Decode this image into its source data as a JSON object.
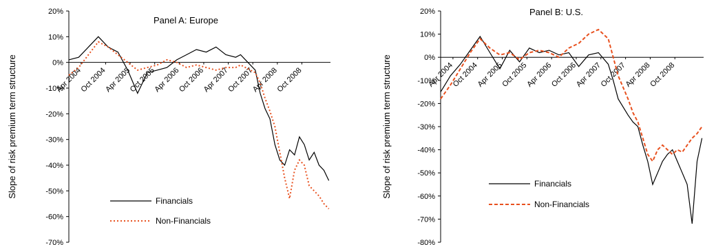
{
  "chart_data": [
    {
      "type": "line",
      "title": "Panel A: Europe",
      "ylabel": "Slope of risk premium term structure",
      "ylim": [
        -70,
        20
      ],
      "yticks": [
        20,
        10,
        0,
        -10,
        -20,
        -30,
        -40,
        -50,
        -60,
        -70
      ],
      "ytick_labels": [
        "20%",
        "10%",
        "0%",
        "-10%",
        "-20%",
        "-30%",
        "-40%",
        "-50%",
        "-60%",
        "-70%"
      ],
      "xlim": [
        2004.0,
        2009.333
      ],
      "xticks": [
        {
          "label": "Apr 2004",
          "x": 2004.25
        },
        {
          "label": "Oct 2004",
          "x": 2004.75
        },
        {
          "label": "Apr 2005",
          "x": 2005.25
        },
        {
          "label": "Oct 2005",
          "x": 2005.75
        },
        {
          "label": "Apr 2006",
          "x": 2006.25
        },
        {
          "label": "Oct 2006",
          "x": 2006.75
        },
        {
          "label": "Apr 2007",
          "x": 2007.25
        },
        {
          "label": "Oct 2007",
          "x": 2007.75
        },
        {
          "label": "Apr 2008",
          "x": 2008.25
        },
        {
          "label": "Oct 2008",
          "x": 2008.75
        }
      ],
      "legend": {
        "placement": "lower-center"
      },
      "series": [
        {
          "name": "Financials",
          "color": "#000000",
          "x": [
            2004.0,
            2004.2,
            2004.4,
            2004.6,
            2004.8,
            2005.0,
            2005.2,
            2005.4,
            2005.6,
            2005.8,
            2006.0,
            2006.2,
            2006.4,
            2006.6,
            2006.8,
            2007.0,
            2007.2,
            2007.4,
            2007.5,
            2007.6,
            2007.8,
            2007.9,
            2008.0,
            2008.1,
            2008.2,
            2008.3,
            2008.4,
            2008.5,
            2008.6,
            2008.7,
            2008.8,
            2008.9,
            2009.0,
            2009.1,
            2009.2,
            2009.3
          ],
          "y": [
            1,
            2,
            6,
            10,
            6,
            4,
            -3,
            -12,
            -4,
            -3,
            -2,
            1,
            3,
            5,
            4,
            6,
            3,
            2,
            3,
            1,
            -3,
            -12,
            -18,
            -22,
            -32,
            -38,
            -40,
            -34,
            -36,
            -29,
            -32,
            -38,
            -35,
            -40,
            -42,
            -46
          ]
        },
        {
          "name": "Non-Financials",
          "color": "#e8501e",
          "x": [
            2004.0,
            2004.2,
            2004.4,
            2004.6,
            2004.8,
            2005.0,
            2005.2,
            2005.4,
            2005.6,
            2005.8,
            2006.0,
            2006.2,
            2006.4,
            2006.6,
            2006.8,
            2007.0,
            2007.2,
            2007.4,
            2007.5,
            2007.6,
            2007.8,
            2007.9,
            2008.0,
            2008.1,
            2008.2,
            2008.3,
            2008.4,
            2008.5,
            2008.6,
            2008.7,
            2008.8,
            2008.9,
            2009.0,
            2009.1,
            2009.2,
            2009.3
          ],
          "y": [
            -5,
            -2,
            3,
            8,
            6,
            3,
            0,
            -3,
            -2,
            -1,
            1,
            0,
            -2,
            -1,
            -2,
            -3,
            -2,
            -2,
            -1,
            -2,
            -4,
            -8,
            -14,
            -19,
            -25,
            -35,
            -45,
            -53,
            -42,
            -38,
            -40,
            -48,
            -50,
            -52,
            -55,
            -57
          ]
        }
      ]
    },
    {
      "type": "line",
      "title": "Panel B: U.S.",
      "ylabel": "Slope of risk premium term structure",
      "ylim": [
        -80,
        20
      ],
      "yticks": [
        20,
        10,
        0,
        -10,
        -20,
        -30,
        -40,
        -50,
        -60,
        -70,
        -80
      ],
      "ytick_labels": [
        "20%",
        "10%",
        "0%",
        "-10%",
        "-20%",
        "-30%",
        "-40%",
        "-50%",
        "-60%",
        "-70%",
        "-80%"
      ],
      "xlim": [
        2004.0,
        2009.333
      ],
      "xticks": [
        {
          "label": "Apr 2004",
          "x": 2004.25
        },
        {
          "label": "Oct 2004",
          "x": 2004.75
        },
        {
          "label": "Apr 2005",
          "x": 2005.25
        },
        {
          "label": "Oct 2005",
          "x": 2005.75
        },
        {
          "label": "Apr 2006",
          "x": 2006.25
        },
        {
          "label": "Oct 2006",
          "x": 2006.75
        },
        {
          "label": "Apr 2007",
          "x": 2007.25
        },
        {
          "label": "Oct 2007",
          "x": 2007.75
        },
        {
          "label": "Apr 2008",
          "x": 2008.25
        },
        {
          "label": "Oct 2008",
          "x": 2008.75
        }
      ],
      "legend": {
        "placement": "lower-center"
      },
      "series": [
        {
          "name": "Financials",
          "color": "#000000",
          "x": [
            2004.0,
            2004.2,
            2004.4,
            2004.6,
            2004.8,
            2005.0,
            2005.2,
            2005.4,
            2005.6,
            2005.8,
            2006.0,
            2006.2,
            2006.4,
            2006.6,
            2006.8,
            2007.0,
            2007.2,
            2007.4,
            2007.5,
            2007.6,
            2007.8,
            2007.9,
            2008.0,
            2008.1,
            2008.2,
            2008.3,
            2008.4,
            2008.5,
            2008.6,
            2008.7,
            2008.8,
            2008.9,
            2009.0,
            2009.1,
            2009.2,
            2009.3
          ],
          "y": [
            -15,
            -8,
            -3,
            3,
            9,
            2,
            -5,
            3,
            -2,
            4,
            2,
            3,
            1,
            2,
            -4,
            1,
            2,
            -3,
            -10,
            -18,
            -25,
            -28,
            -30,
            -38,
            -45,
            -55,
            -50,
            -45,
            -42,
            -40,
            -45,
            -50,
            -55,
            -72,
            -45,
            -35
          ]
        },
        {
          "name": "Non-Financials",
          "color": "#e8501e",
          "x": [
            2004.0,
            2004.2,
            2004.4,
            2004.6,
            2004.8,
            2005.0,
            2005.2,
            2005.4,
            2005.6,
            2005.8,
            2006.0,
            2006.2,
            2006.4,
            2006.6,
            2006.8,
            2007.0,
            2007.2,
            2007.4,
            2007.5,
            2007.6,
            2007.8,
            2007.9,
            2008.0,
            2008.1,
            2008.2,
            2008.3,
            2008.4,
            2008.5,
            2008.6,
            2008.7,
            2008.8,
            2008.9,
            2009.0,
            2009.1,
            2009.2,
            2009.3
          ],
          "y": [
            -18,
            -12,
            -5,
            2,
            8,
            4,
            1,
            2,
            -1,
            2,
            3,
            2,
            0,
            4,
            6,
            10,
            12,
            8,
            0,
            -8,
            -18,
            -24,
            -28,
            -35,
            -42,
            -45,
            -40,
            -38,
            -40,
            -42,
            -40,
            -41,
            -38,
            -35,
            -33,
            -30
          ]
        }
      ]
    }
  ]
}
